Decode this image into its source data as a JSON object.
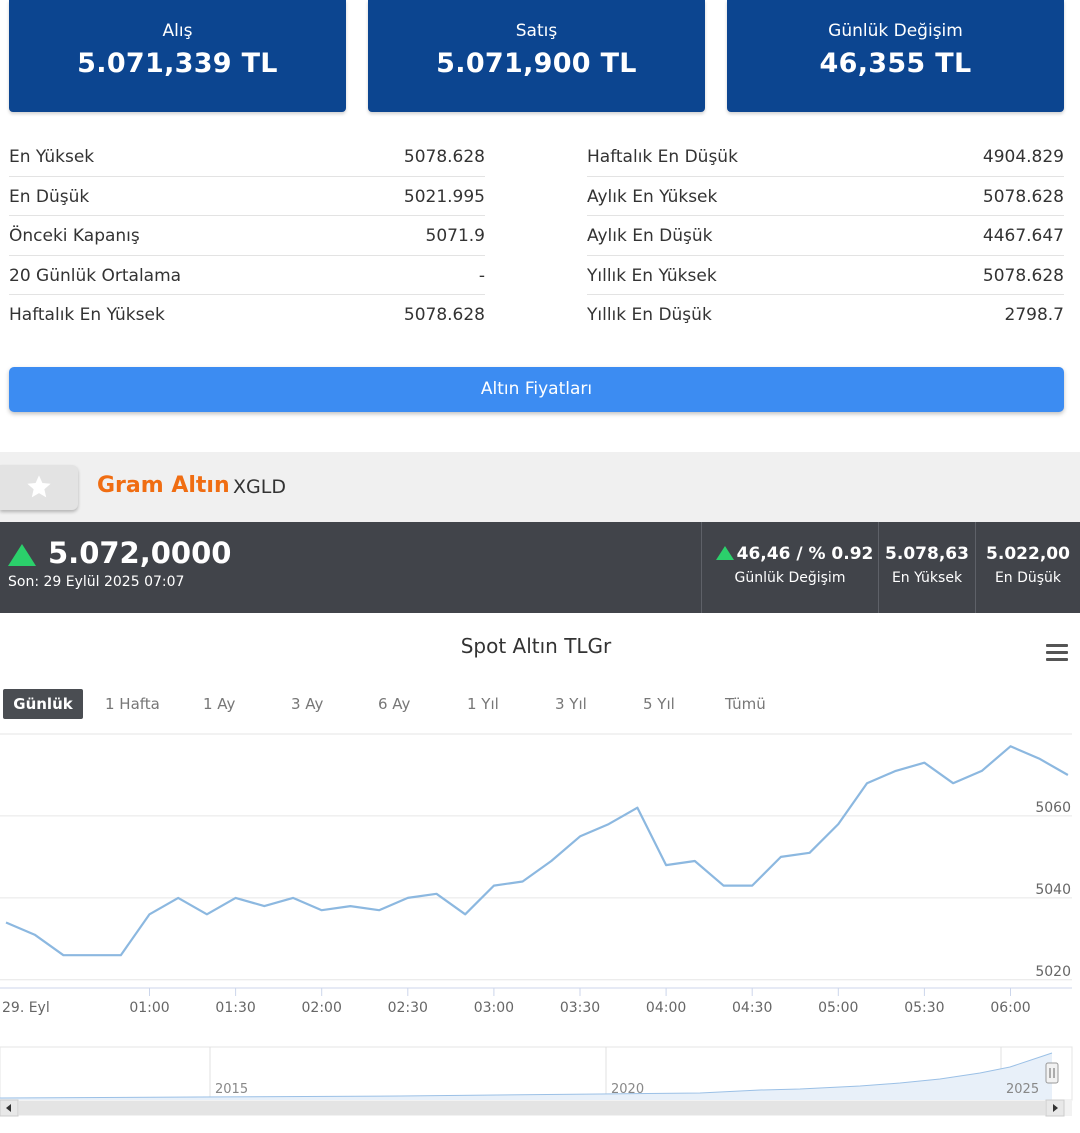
{
  "cards": [
    {
      "label": "Alış",
      "value": "5.071,339 TL"
    },
    {
      "label": "Satış",
      "value": "5.071,900 TL"
    },
    {
      "label": "Günlük Değişim",
      "value": "46,355 TL"
    }
  ],
  "stats_left": [
    {
      "label": "En Yüksek",
      "value": "5078.628"
    },
    {
      "label": "En Düşük",
      "value": "5021.995"
    },
    {
      "label": "Önceki Kapanış",
      "value": "5071.9"
    },
    {
      "label": "20 Günlük Ortalama",
      "value": "-"
    },
    {
      "label": "Haftalık En Yüksek",
      "value": "5078.628"
    }
  ],
  "stats_right": [
    {
      "label": "Haftalık En Düşük",
      "value": "4904.829"
    },
    {
      "label": "Aylık En Yüksek",
      "value": "5078.628"
    },
    {
      "label": "Aylık En Düşük",
      "value": "4467.647"
    },
    {
      "label": "Yıllık En Yüksek",
      "value": "5078.628"
    },
    {
      "label": "Yıllık En Düşük",
      "value": "2798.7"
    }
  ],
  "button_label": "Altın Fiyatları",
  "instrument": {
    "name": "Gram Altın",
    "code": "XGLD"
  },
  "price_bar": {
    "price": "5.072,0000",
    "last_update": "Son: 29 Eylül 2025 07:07",
    "change_value": "46,46 / % 0.92",
    "change_label": "Günlük Değişim",
    "high_value": "5.078,63",
    "high_label": "En Yüksek",
    "low_value": "5.022,00",
    "low_label": "En Düşük"
  },
  "colors": {
    "card_bg": "#0c4590",
    "button_bg": "#3c8cf2",
    "title_orange": "#f06d12",
    "up_green": "#2bd06b",
    "line": "#8cb8e0"
  },
  "range_tabs": [
    "Günlük",
    "1 Hafta",
    "1 Ay",
    "3 Ay",
    "6 Ay",
    "1 Yıl",
    "3 Yıl",
    "5 Yıl",
    "Tümü"
  ],
  "active_tab": "Günlük",
  "chart_data": {
    "type": "line",
    "title": "Spot Altın TLGr",
    "x": [
      "29. Eyl",
      "",
      "",
      "",
      "",
      "01:00",
      "",
      "",
      "01:30",
      "",
      "",
      "02:00",
      "",
      "",
      "02:30",
      "",
      "",
      "03:00",
      "",
      "",
      "03:30",
      "",
      "",
      "04:00",
      "",
      "",
      "04:30",
      "",
      "",
      "05:00",
      "",
      "",
      "05:30",
      "",
      "",
      "06:00",
      "",
      ""
    ],
    "xticks": [
      "29. Eyl",
      "01:00",
      "01:30",
      "02:00",
      "02:30",
      "03:00",
      "03:30",
      "04:00",
      "04:30",
      "05:00",
      "05:30",
      "06:00"
    ],
    "series": [
      {
        "values": [
          5034,
          5031,
          5026,
          5026,
          5026,
          5036,
          5040,
          5036,
          5040,
          5038,
          5040,
          5037,
          5038,
          5037,
          5040,
          5041,
          5036,
          5043,
          5044,
          5049,
          5055,
          5058,
          5062,
          5048,
          5049,
          5043,
          5043,
          5050,
          5051,
          5058,
          5068,
          5071,
          5073,
          5068,
          5071,
          5077,
          5074,
          5070
        ]
      }
    ],
    "yticks": [
      5020,
      5040,
      5060
    ],
    "ylim": [
      5018,
      5080
    ],
    "grid": true,
    "navigator_labels": [
      "2015",
      "2020",
      "2025"
    ]
  }
}
